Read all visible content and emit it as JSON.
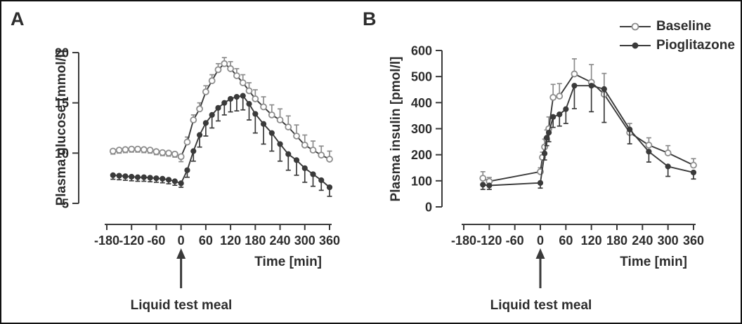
{
  "colors": {
    "line_dark": "#3a3a3a",
    "series_gray": "#8c8c8c",
    "marker_open_fill": "#ffffff",
    "text": "#2d2d2d"
  },
  "legend": {
    "position": "top-right",
    "items": [
      {
        "label": "Baseline",
        "marker": "open"
      },
      {
        "label": "Pioglitazone",
        "marker": "filled"
      }
    ]
  },
  "chart_data": [
    {
      "panel": "A",
      "type": "line",
      "ylabel": "Plasma glucose [mmol/l]",
      "xlabel": "Time [min]",
      "xlim": [
        -180,
        360
      ],
      "ylim": [
        5,
        20
      ],
      "xticks": [
        -180,
        -120,
        -60,
        0,
        60,
        120,
        180,
        240,
        300,
        360
      ],
      "yticks": [
        5,
        10,
        15,
        20
      ],
      "grid": false,
      "annotation": {
        "text": "Liquid test meal",
        "arrow_x": 0
      },
      "series": [
        {
          "name": "Baseline",
          "marker": "open",
          "err_dir": [
            "down",
            "down",
            "down",
            "down",
            "down",
            "down",
            "down",
            "down",
            "down",
            "down",
            "down",
            "down",
            "up",
            "up",
            "up",
            "up",
            "up",
            "up",
            "up",
            "up",
            "up",
            "up",
            "up",
            "up",
            "up",
            "up",
            "up",
            "up",
            "up",
            "up",
            "up",
            "up",
            "up"
          ],
          "x": [
            -165,
            -150,
            -135,
            -120,
            -105,
            -90,
            -75,
            -60,
            -45,
            -30,
            -15,
            0,
            15,
            30,
            45,
            60,
            75,
            90,
            105,
            120,
            135,
            150,
            165,
            180,
            200,
            220,
            240,
            260,
            280,
            300,
            320,
            340,
            360
          ],
          "y": [
            10.2,
            10.3,
            10.35,
            10.4,
            10.4,
            10.35,
            10.3,
            10.15,
            10.05,
            10.0,
            9.9,
            9.65,
            11.1,
            13.3,
            14.4,
            16.1,
            17.2,
            18.3,
            18.9,
            18.4,
            17.7,
            17.0,
            16.2,
            15.4,
            14.6,
            13.8,
            13.3,
            12.6,
            11.7,
            10.8,
            10.3,
            9.8,
            9.4
          ],
          "err": [
            0.3,
            0.3,
            0.3,
            0.3,
            0.3,
            0.3,
            0.3,
            0.3,
            0.3,
            0.3,
            0.3,
            0.5,
            0.5,
            0.5,
            0.6,
            0.6,
            0.6,
            0.6,
            0.6,
            0.7,
            0.7,
            0.8,
            0.8,
            0.9,
            1.0,
            1.0,
            1.1,
            1.1,
            1.1,
            1.0,
            0.9,
            0.9,
            0.8
          ]
        },
        {
          "name": "Pioglitazone",
          "marker": "filled",
          "err_dir": "down",
          "x": [
            -165,
            -150,
            -135,
            -120,
            -105,
            -90,
            -75,
            -60,
            -45,
            -30,
            -15,
            0,
            15,
            30,
            45,
            60,
            75,
            90,
            105,
            120,
            135,
            150,
            165,
            180,
            200,
            220,
            240,
            260,
            280,
            300,
            320,
            340,
            360
          ],
          "y": [
            7.8,
            7.75,
            7.7,
            7.65,
            7.6,
            7.6,
            7.55,
            7.5,
            7.45,
            7.35,
            7.2,
            7.0,
            8.3,
            10.2,
            11.8,
            13.0,
            13.8,
            14.5,
            15.0,
            15.4,
            15.6,
            15.7,
            14.9,
            13.9,
            12.9,
            12.0,
            10.9,
            9.9,
            9.3,
            8.5,
            7.9,
            7.3,
            6.6
          ],
          "err": [
            0.4,
            0.4,
            0.4,
            0.4,
            0.4,
            0.4,
            0.4,
            0.4,
            0.4,
            0.4,
            0.4,
            0.4,
            0.7,
            1.0,
            1.2,
            1.3,
            1.3,
            1.3,
            1.2,
            1.3,
            1.4,
            1.4,
            1.6,
            1.9,
            2.0,
            1.8,
            1.7,
            1.6,
            1.5,
            1.4,
            1.2,
            1.0,
            0.9
          ]
        }
      ]
    },
    {
      "panel": "B",
      "type": "line",
      "ylabel": "Plasma insulin [pmol/l]",
      "xlabel": "Time [min]",
      "xlim": [
        -180,
        360
      ],
      "ylim": [
        0,
        600
      ],
      "xticks": [
        -180,
        -120,
        -60,
        0,
        60,
        120,
        180,
        240,
        300,
        360
      ],
      "yticks": [
        0,
        100,
        200,
        300,
        400,
        500,
        600
      ],
      "grid": false,
      "annotation": {
        "text": "Liquid test meal",
        "arrow_x": 0
      },
      "series": [
        {
          "name": "Baseline",
          "marker": "open",
          "err_dir": "up",
          "x": [
            -135,
            -120,
            0,
            5,
            10,
            15,
            20,
            30,
            45,
            80,
            120,
            150,
            210,
            255,
            300,
            360
          ],
          "y": [
            110,
            98,
            135,
            190,
            230,
            260,
            300,
            420,
            425,
            510,
            478,
            432,
            285,
            237,
            207,
            160
          ],
          "err": [
            25,
            15,
            15,
            20,
            30,
            35,
            45,
            50,
            48,
            58,
            68,
            80,
            35,
            28,
            28,
            25
          ]
        },
        {
          "name": "Pioglitazone",
          "marker": "filled",
          "err_dir": "down",
          "x": [
            -135,
            -120,
            0,
            10,
            15,
            20,
            30,
            45,
            60,
            80,
            120,
            150,
            210,
            255,
            300,
            360
          ],
          "y": [
            85,
            82,
            92,
            205,
            265,
            285,
            345,
            355,
            375,
            465,
            465,
            452,
            297,
            212,
            155,
            132
          ],
          "err": [
            18,
            15,
            20,
            25,
            30,
            35,
            40,
            45,
            55,
            88,
            100,
            128,
            55,
            40,
            38,
            25
          ]
        }
      ]
    }
  ]
}
